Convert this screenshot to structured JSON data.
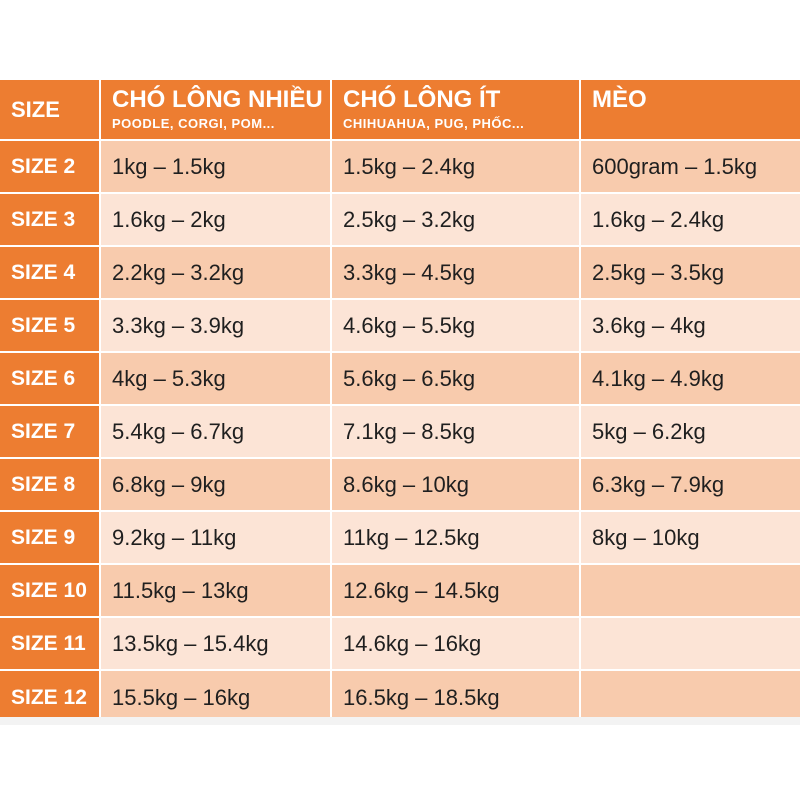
{
  "table": {
    "headers": {
      "size": "SIZE",
      "col1": {
        "title": "CHÓ LÔNG NHIỀU",
        "subtitle": "POODLE, CORGI, POM..."
      },
      "col2": {
        "title": "CHÓ LÔNG ÍT",
        "subtitle": "CHIHUAHUA, PUG, PHỐC..."
      },
      "col3": {
        "title": "MÈO",
        "subtitle": ""
      }
    },
    "rows": [
      {
        "size": "SIZE 2",
        "c1": "1kg – 1.5kg",
        "c2": "1.5kg – 2.4kg",
        "c3": "600gram – 1.5kg"
      },
      {
        "size": "SIZE 3",
        "c1": "1.6kg – 2kg",
        "c2": "2.5kg – 3.2kg",
        "c3": "1.6kg – 2.4kg"
      },
      {
        "size": "SIZE 4",
        "c1": "2.2kg – 3.2kg",
        "c2": "3.3kg – 4.5kg",
        "c3": "2.5kg – 3.5kg"
      },
      {
        "size": "SIZE 5",
        "c1": "3.3kg – 3.9kg",
        "c2": "4.6kg – 5.5kg",
        "c3": "3.6kg – 4kg"
      },
      {
        "size": "SIZE 6",
        "c1": "4kg – 5.3kg",
        "c2": "5.6kg – 6.5kg",
        "c3": "4.1kg – 4.9kg"
      },
      {
        "size": "SIZE 7",
        "c1": "5.4kg – 6.7kg",
        "c2": "7.1kg – 8.5kg",
        "c3": "5kg – 6.2kg"
      },
      {
        "size": "SIZE 8",
        "c1": "6.8kg – 9kg",
        "c2": "8.6kg – 10kg",
        "c3": "6.3kg – 7.9kg"
      },
      {
        "size": "SIZE 9",
        "c1": "9.2kg – 11kg",
        "c2": "11kg – 12.5kg",
        "c3": "8kg – 10kg"
      },
      {
        "size": "SIZE 10",
        "c1": "11.5kg – 13kg",
        "c2": "12.6kg – 14.5kg",
        "c3": ""
      },
      {
        "size": "SIZE 11",
        "c1": "13.5kg – 15.4kg",
        "c2": "14.6kg – 16kg",
        "c3": ""
      },
      {
        "size": "SIZE 12",
        "c1": "15.5kg – 16kg",
        "c2": "16.5kg – 18.5kg",
        "c3": ""
      }
    ]
  },
  "colors": {
    "header_orange": "#ed7d31",
    "row_dark": "#f8cbad",
    "row_light": "#fce4d6"
  }
}
